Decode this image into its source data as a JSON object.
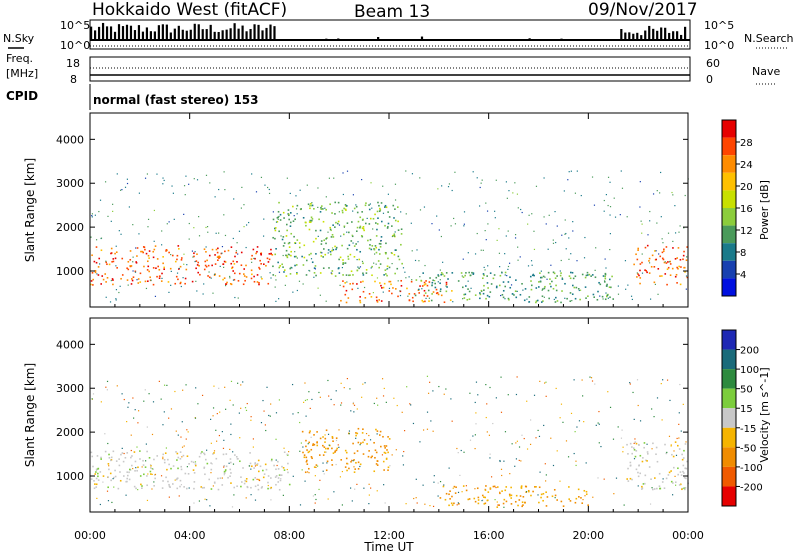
{
  "header": {
    "title": "Hokkaido West (fitACF)",
    "beam": "Beam 13",
    "date": "09/Nov/2017"
  },
  "strips": {
    "nsky_label": "N.Sky",
    "nsearch_label": "N.Search",
    "noise_ticks": [
      "10^5",
      "10^0"
    ],
    "freq_label_1": "Freq.",
    "freq_label_2": "[MHz]",
    "freq_ticks": [
      "18",
      "8"
    ],
    "nave_label": "Nave",
    "nave_ticks": [
      "60",
      "0"
    ],
    "cpid_label": "CPID",
    "cpid_text": "normal (fast stereo) 153"
  },
  "chart_data": [
    {
      "type": "heatmap",
      "name": "Power",
      "ylabel": "Slant Range [km]",
      "yticks": [
        1000,
        2000,
        3000,
        4000
      ],
      "ylim": [
        180,
        4600
      ],
      "xlim": [
        0,
        24
      ],
      "xticks_hours": [
        0,
        4,
        8,
        12,
        16,
        20,
        24
      ],
      "colorbar": {
        "label": "Power [dB]",
        "ticks": [
          "28",
          "24",
          "20",
          "16",
          "12",
          "8",
          "4"
        ],
        "colors": [
          "#e60000",
          "#ff4500",
          "#ff8c00",
          "#ffc000",
          "#c8e000",
          "#8ccd3c",
          "#4a9a5a",
          "#1a7a8a",
          "#1840b0",
          "#0010e0"
        ]
      },
      "features": [
        {
          "desc": "ionospheric band",
          "t": [
            0,
            7.3
          ],
          "range_km": [
            700,
            1600
          ],
          "power_db": 26
        },
        {
          "desc": "ionospheric band",
          "t": [
            21.8,
            24
          ],
          "range_km": [
            700,
            1600
          ],
          "power_db": 26
        },
        {
          "desc": "echo arc",
          "t": [
            7.3,
            12.5
          ],
          "range_km": [
            900,
            2600
          ],
          "power_db": 12
        },
        {
          "desc": "near-range echoes",
          "t": [
            10,
            14.5
          ],
          "range_km": [
            300,
            800
          ],
          "power_db": 25
        },
        {
          "desc": "low-elevation streaks",
          "t": [
            13,
            21
          ],
          "range_km": [
            300,
            1000
          ],
          "power_db": 10
        }
      ]
    },
    {
      "type": "heatmap",
      "name": "Velocity",
      "ylabel": "Slant Range [km]",
      "yticks": [
        1000,
        2000,
        3000,
        4000
      ],
      "ylim": [
        180,
        4600
      ],
      "xlim": [
        0,
        24
      ],
      "xticks": [
        "00:00",
        "04:00",
        "08:00",
        "12:00",
        "16:00",
        "20:00",
        "00:00"
      ],
      "xlabel": "Time UT",
      "colorbar": {
        "label": "Velocity [m s^-1]",
        "ticks": [
          "200",
          "100",
          "50",
          "15",
          "-15",
          "-50",
          "-100",
          "-200"
        ],
        "colors": [
          "#1e28b4",
          "#1a6b7a",
          "#2d8a3e",
          "#7ccd3c",
          "#c8c8c8",
          "#f5b400",
          "#f08c00",
          "#f05a00",
          "#e60000"
        ]
      },
      "features": [
        {
          "desc": "near-zero velocity band",
          "t": [
            0,
            8
          ],
          "range_km": [
            700,
            1600
          ],
          "velocity": 0
        },
        {
          "desc": "receding echoes",
          "t": [
            8.5,
            12
          ],
          "range_km": [
            1100,
            2100
          ],
          "velocity": -60
        },
        {
          "desc": "receding streaks",
          "t": [
            14,
            20
          ],
          "range_km": [
            300,
            800
          ],
          "velocity": -50
        },
        {
          "desc": "near-zero velocity band",
          "t": [
            21.5,
            24
          ],
          "range_km": [
            700,
            1800
          ],
          "velocity": 0
        }
      ]
    }
  ],
  "colors": {
    "background": "#ffffff",
    "axis": "#000000"
  }
}
